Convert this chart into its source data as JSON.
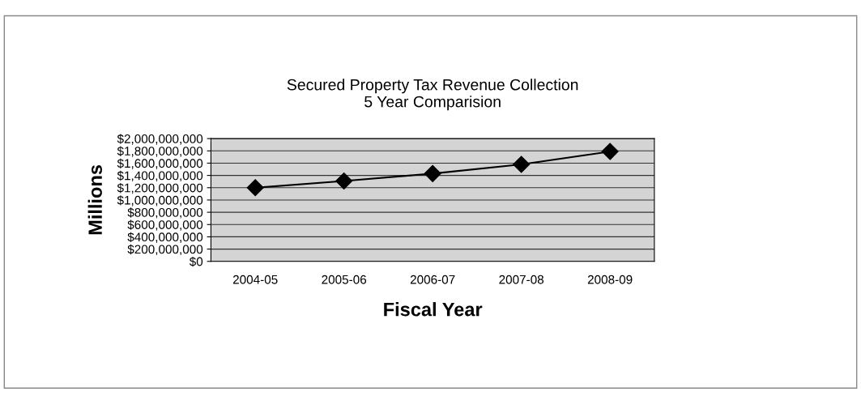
{
  "chart_data": {
    "type": "line",
    "title": "Secured Property Tax Revenue Collection\n5 Year Comparision",
    "xlabel": "Fiscal Year",
    "ylabel": "Millions",
    "categories": [
      "2004-05",
      "2005-06",
      "2006-07",
      "2007-08",
      "2008-09"
    ],
    "series": [
      {
        "color": "#000000",
        "values": [
          1200000000,
          1310000000,
          1430000000,
          1580000000,
          1790000000
        ]
      }
    ],
    "ylim": [
      0,
      2000000000
    ],
    "yticks": [
      {
        "value": 0,
        "label": "$0"
      },
      {
        "value": 200000000,
        "label": "$200,000,000"
      },
      {
        "value": 400000000,
        "label": "$400,000,000"
      },
      {
        "value": 600000000,
        "label": "$600,000,000"
      },
      {
        "value": 800000000,
        "label": "$800,000,000"
      },
      {
        "value": 1000000000,
        "label": "$1,000,000,000"
      },
      {
        "value": 1200000000,
        "label": "$1,200,000,000"
      },
      {
        "value": 1400000000,
        "label": "$1,400,000,000"
      },
      {
        "value": 1600000000,
        "label": "$1,600,000,000"
      },
      {
        "value": 1800000000,
        "label": "$1,800,000,000"
      },
      {
        "value": 2000000000,
        "label": "$2,000,000,000"
      }
    ],
    "grid": "y",
    "marker": "diamond",
    "line_style": "solid"
  }
}
